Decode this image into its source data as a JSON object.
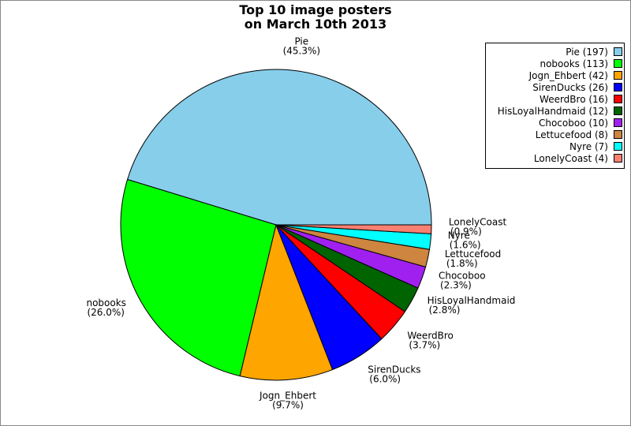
{
  "chart_data": {
    "type": "pie",
    "title": [
      "Top 10 image posters",
      "on March 10th 2013"
    ],
    "categories": [
      "Pie",
      "nobooks",
      "Jogn_Ehbert",
      "SirenDucks",
      "WeerdBro",
      "HisLoyalHandmaid",
      "Chocoboo",
      "Lettucefood",
      "Nyre",
      "LonelyCoast"
    ],
    "values": [
      197,
      113,
      42,
      26,
      16,
      12,
      10,
      8,
      7,
      4
    ],
    "value_labels": [
      "(45.3%)",
      "(26.0%)",
      "(9.7%)",
      "(6.0%)",
      "(3.7%)",
      "(2.8%)",
      "(2.3%)",
      "(1.8%)",
      "(1.6%)",
      "(0.9%)"
    ],
    "legend_labels": [
      "Pie (197)",
      "nobooks (113)",
      "Jogn_Ehbert (42)",
      "SirenDucks (26)",
      "WeerdBro (16)",
      "HisLoyalHandmaid (12)",
      "Chocoboo (10)",
      "Lettucefood (8)",
      "Nyre (7)",
      "LonelyCoast (4)"
    ],
    "colors": [
      "#87ceeb",
      "#00ff00",
      "#ffa500",
      "#0000ff",
      "#ff0000",
      "#006400",
      "#a020f0",
      "#cd853f",
      "#00ffff",
      "#fa8072"
    ],
    "legend": "upper right"
  }
}
